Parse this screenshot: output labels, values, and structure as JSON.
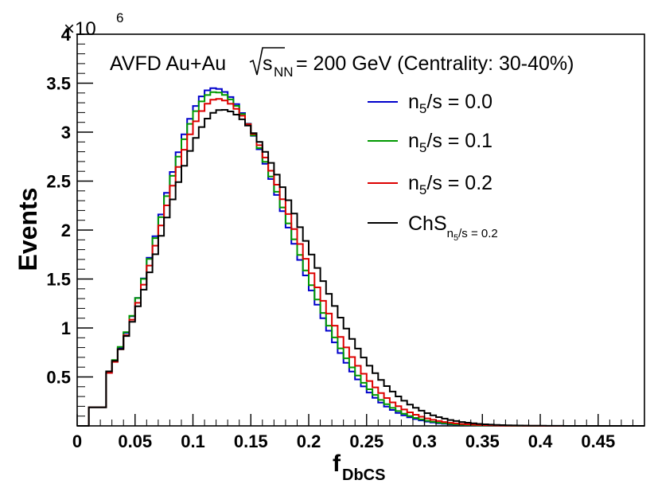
{
  "chart_data": {
    "type": "line",
    "style": "step-histogram",
    "title": {
      "prefix": "AVFD Au+Au ",
      "sqrt_var": "s",
      "sqrt_sub": "NN",
      "suffix": " = 200 GeV (Centrality: 30-40%)"
    },
    "xlabel": {
      "main": "f",
      "sub": "DbCS"
    },
    "ylabel": "Events",
    "y_exponent": {
      "base": "×10",
      "power": "6"
    },
    "xlim": [
      0,
      0.49
    ],
    "ylim": [
      0,
      4000000
    ],
    "x_ticks": [
      "0",
      "0.05",
      "0.1",
      "0.15",
      "0.2",
      "0.25",
      "0.3",
      "0.35",
      "0.4",
      "0.45"
    ],
    "x_tick_values": [
      0,
      0.05,
      0.1,
      0.15,
      0.2,
      0.25,
      0.3,
      0.35,
      0.4,
      0.45
    ],
    "y_ticks": [
      "0.5",
      "1",
      "1.5",
      "2",
      "2.5",
      "3",
      "3.5",
      "4"
    ],
    "y_tick_values": [
      500000,
      1000000,
      1500000,
      2000000,
      2500000,
      3000000,
      3500000,
      4000000
    ],
    "bin_width": 0.005,
    "legend_position": "top-right",
    "series": [
      {
        "name": "n5/s = 0.0",
        "legend": {
          "base": "n",
          "sub": "5",
          "rest": "/s = 0.0"
        },
        "color": "#0000cc",
        "peak_x": 0.118,
        "peak_y": 3450000,
        "rise_width": 0.047,
        "fall_width": 0.0625
      },
      {
        "name": "n5/s = 0.1",
        "legend": {
          "base": "n",
          "sub": "5",
          "rest": "/s = 0.1"
        },
        "color": "#009900",
        "peak_x": 0.119,
        "peak_y": 3410000,
        "rise_width": 0.048,
        "fall_width": 0.0635
      },
      {
        "name": "n5/s = 0.2",
        "legend": {
          "base": "n",
          "sub": "5",
          "rest": "/s = 0.2"
        },
        "color": "#dd0000",
        "peak_x": 0.121,
        "peak_y": 3340000,
        "rise_width": 0.049,
        "fall_width": 0.066
      },
      {
        "name": "ChS n5/s = 0.2",
        "legend": {
          "base": "ChS",
          "sub": "n",
          "sub2": "5",
          "rest": "/s = 0.2"
        },
        "color": "#000000",
        "peak_x": 0.125,
        "peak_y": 3230000,
        "rise_width": 0.052,
        "fall_width": 0.07
      }
    ]
  }
}
